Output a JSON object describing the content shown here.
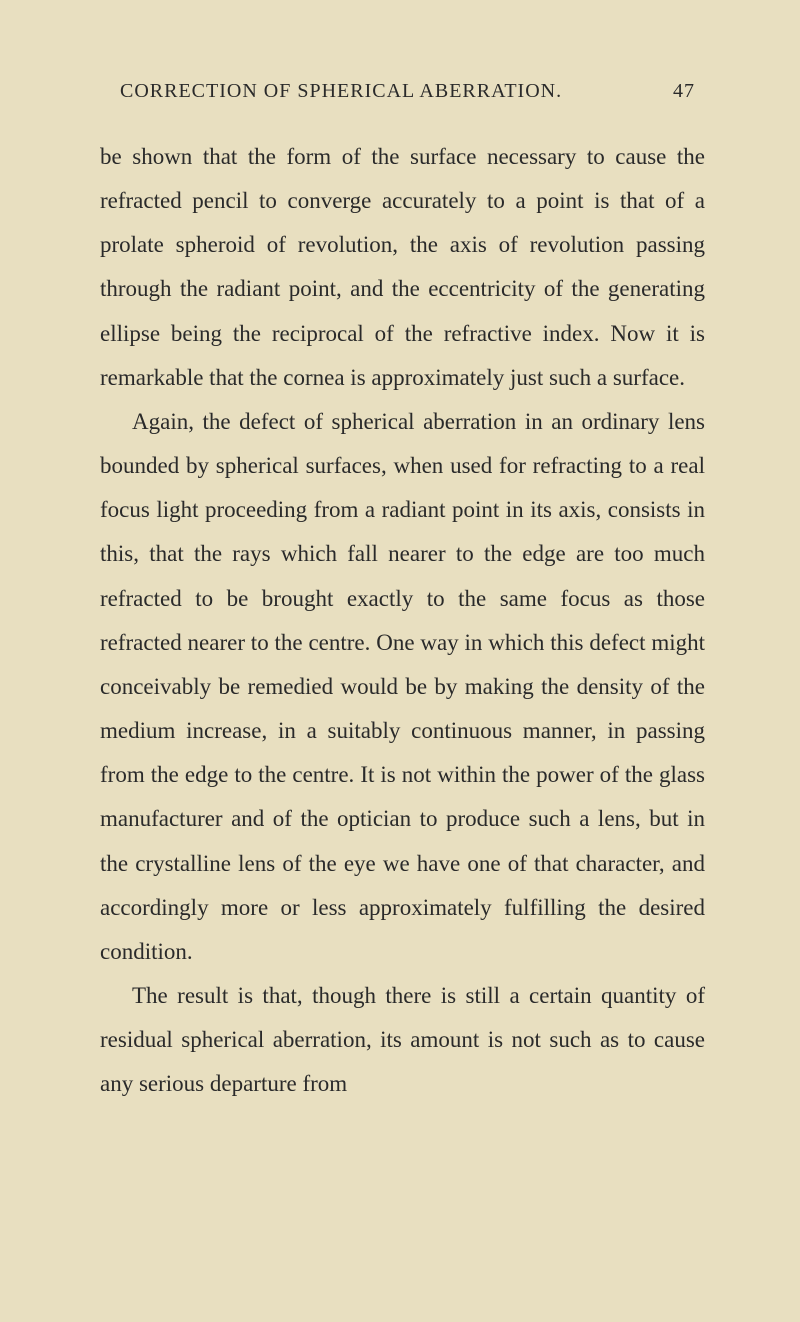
{
  "header": {
    "title": "CORRECTION OF SPHERICAL ABERRATION.",
    "page_number": "47"
  },
  "paragraphs": {
    "p1": "be shown that the form of the surface necessary to cause the refracted pencil to converge accurately to a point is that of a prolate spheroid of revolution, the axis of revolution passing through the radiant point, and the eccentricity of the generating ellipse being the reciprocal of the refractive index. Now it is remarkable that the cornea is approximately just such a surface.",
    "p2": "Again, the defect of spherical aberration in an ordinary lens bounded by spherical surfaces, when used for refracting to a real focus light proceeding from a radiant point in its axis, consists in this, that the rays which fall nearer to the edge are too much refracted to be brought exactly to the same focus as those refracted nearer to the centre. One way in which this defect might conceivably be remedied would be by making the density of the medium increase, in a suitably continuous manner, in passing from the edge to the centre. It is not within the power of the glass manufacturer and of the optician to produce such a lens, but in the crystalline lens of the eye we have one of that character, and accord­ingly more or less approximately fulfilling the de­sired condition.",
    "p3": "The result is that, though there is still a certain quantity of residual spherical aberration, its amount is not such as to cause any serious departure from"
  }
}
